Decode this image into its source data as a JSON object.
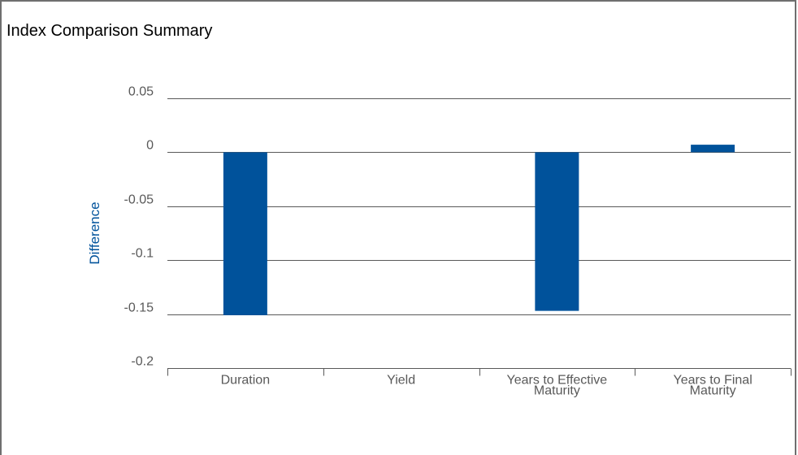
{
  "colors": {
    "bar": "#00529B",
    "grid": "#595959",
    "ylabel": "#00529B",
    "frame": "#6f6f6f"
  },
  "chart_data": {
    "type": "bar",
    "title": "Index Comparison Summary",
    "xlabel": "",
    "ylabel": "Difference",
    "ylim": [
      -0.2,
      0.05
    ],
    "yticks": [
      0.05,
      0,
      -0.05,
      -0.1,
      -0.15,
      -0.2
    ],
    "ytick_labels": [
      "0.05",
      "0",
      "-0.05",
      "-0.1",
      "-0.15",
      "-0.2"
    ],
    "categories": [
      {
        "lines": [
          "Duration"
        ]
      },
      {
        "lines": [
          "Yield"
        ]
      },
      {
        "lines": [
          "Years to Effective",
          "Maturity"
        ]
      },
      {
        "lines": [
          "Years to Final",
          "Maturity"
        ]
      }
    ],
    "values": [
      -0.151,
      0,
      -0.147,
      0.007
    ],
    "grid": true,
    "legend": "none"
  }
}
